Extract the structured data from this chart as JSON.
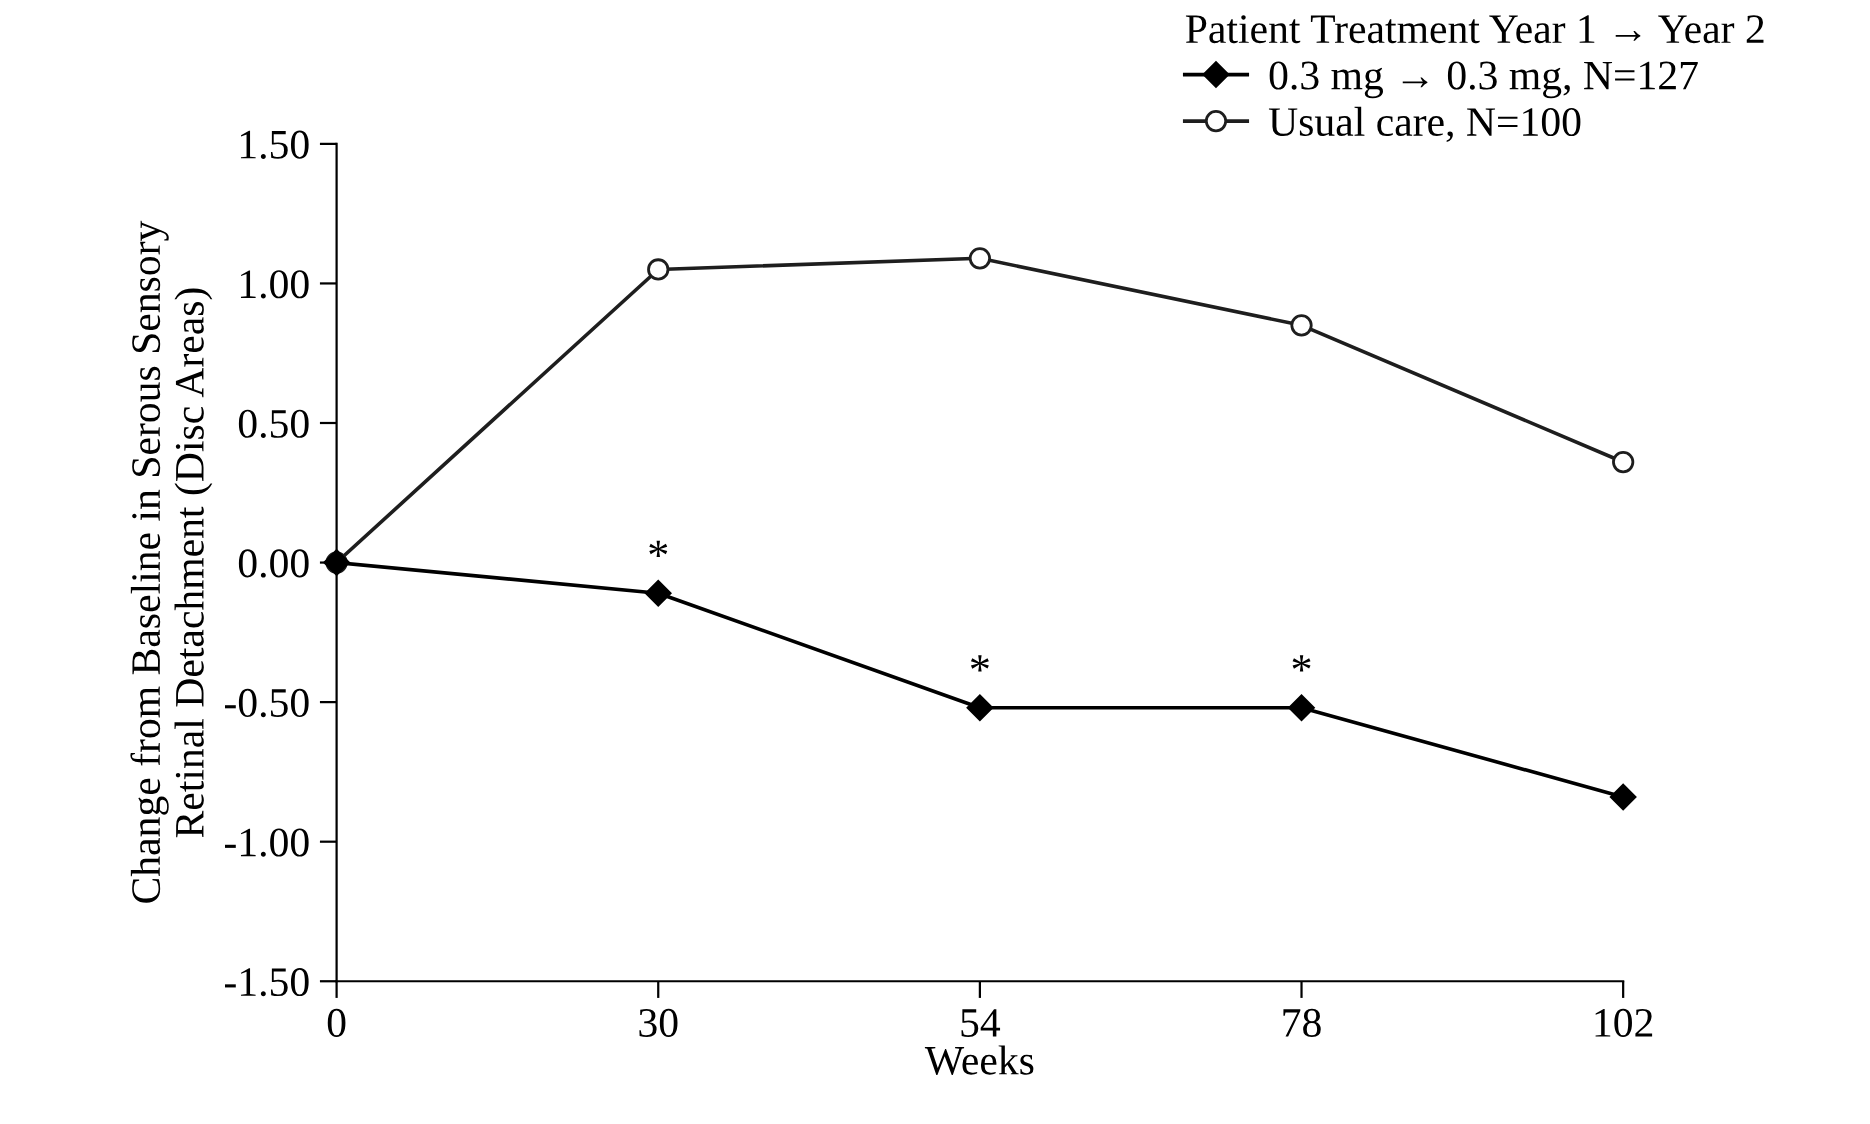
{
  "chart_data": {
    "type": "line",
    "xlabel": "Weeks",
    "ylabel": "Change from Baseline in Serous Sensory\nRetinal Detachment (Disc Areas)",
    "legend_title": "Patient Treatment Year 1 → Year 2",
    "legend": "top right",
    "categories": [
      "0",
      "30",
      "54",
      "78",
      "102"
    ],
    "series": [
      {
        "name": "0.3 mg → 0.3 mg, N=127",
        "color": "#000000",
        "marker": "diamond",
        "values": [
          0.0,
          -0.11,
          -0.52,
          -0.52,
          -0.84
        ]
      },
      {
        "name": "Usual care, N=100",
        "color": "#1e1e1e",
        "marker": "circle",
        "values": [
          0.0,
          1.05,
          1.09,
          0.85,
          0.36
        ]
      }
    ],
    "ylim": [
      -1.5,
      1.5
    ],
    "yticks": [
      {
        "value": -1.5,
        "label": "-1.50"
      },
      {
        "value": -1.0,
        "label": "-1.00"
      },
      {
        "value": -0.5,
        "label": "-0.50"
      },
      {
        "value": 0,
        "label": "0.00"
      },
      {
        "value": 0.5,
        "label": "0.50"
      },
      {
        "value": 1.0,
        "label": "1.00"
      },
      {
        "value": 1.5,
        "label": "1.50"
      }
    ],
    "grid": false,
    "line_style": "solid",
    "annotations": [
      {
        "text": "*",
        "x": "30",
        "y": -0.11
      },
      {
        "text": "*",
        "x": "54",
        "y": -0.52
      },
      {
        "text": "*",
        "x": "78",
        "y": -0.52
      }
    ]
  }
}
